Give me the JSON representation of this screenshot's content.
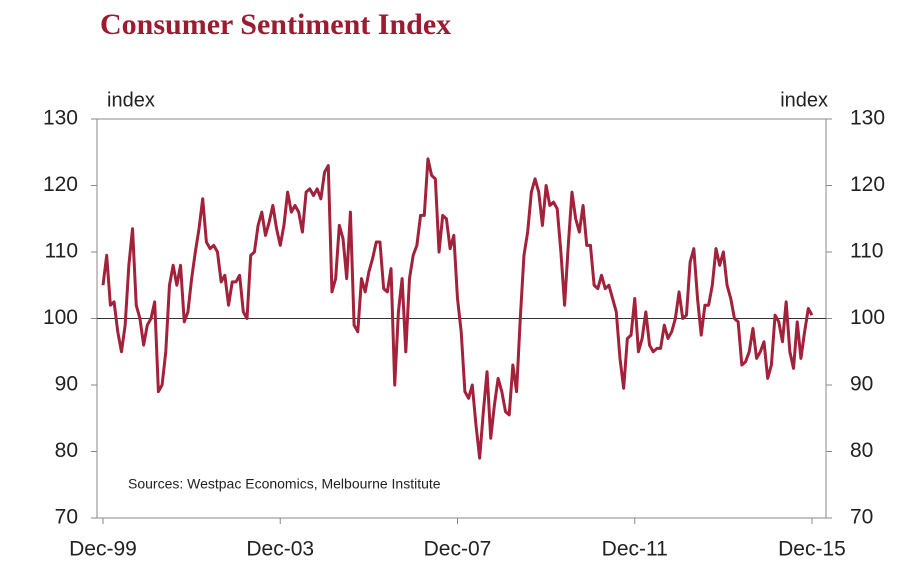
{
  "chart_data": {
    "type": "line",
    "title": "Consumer Sentiment Index",
    "y_label": "index",
    "y2_label": "index",
    "note": "Sources: Westpac Economics, Melbourne Institute",
    "categories": [
      "Dec-99",
      null,
      null,
      null,
      null,
      null,
      null,
      null,
      null,
      null,
      null,
      null,
      null,
      null,
      null,
      null,
      null,
      null,
      null,
      null,
      null,
      null,
      null,
      null,
      null,
      null,
      null,
      null,
      null,
      null,
      null,
      null,
      null,
      null,
      null,
      null,
      null,
      null,
      null,
      null,
      null,
      null,
      null,
      null,
      null,
      null,
      null,
      null,
      "Dec-03",
      null,
      null,
      null,
      null,
      null,
      null,
      null,
      null,
      null,
      null,
      null,
      null,
      null,
      null,
      null,
      null,
      null,
      null,
      null,
      null,
      null,
      null,
      null,
      null,
      null,
      null,
      null,
      null,
      null,
      null,
      null,
      null,
      null,
      null,
      null,
      null,
      null,
      null,
      null,
      null,
      null,
      null,
      null,
      null,
      null,
      null,
      null,
      "Dec-07",
      null,
      null,
      null,
      null,
      null,
      null,
      null,
      null,
      null,
      null,
      null,
      null,
      null,
      null,
      null,
      null,
      null,
      null,
      null,
      null,
      null,
      null,
      null,
      null,
      null,
      null,
      null,
      null,
      null,
      null,
      null,
      null,
      null,
      null,
      null,
      null,
      null,
      null,
      null,
      null,
      null,
      null,
      null,
      null,
      null,
      null,
      null,
      "Dec-11",
      null,
      null,
      null,
      null,
      null,
      null,
      null,
      null,
      null,
      null,
      null,
      null,
      null,
      null,
      null,
      null,
      null,
      null,
      null,
      null,
      null,
      null,
      null,
      null,
      null,
      null,
      null,
      null,
      null,
      null,
      null,
      null,
      null,
      null,
      null,
      null,
      null,
      null,
      null,
      null,
      null,
      null,
      null,
      null,
      null,
      null,
      null,
      "Dec-15"
    ],
    "series": [
      {
        "name": "Consumer Sentiment Index",
        "color": "#a3213a",
        "values": [
          105,
          109.5,
          102,
          102.5,
          98,
          95,
          99,
          108,
          113.5,
          102,
          100,
          96,
          99,
          100,
          102.5,
          89,
          90,
          95,
          105,
          108,
          105,
          108,
          99.5,
          101,
          106,
          110,
          113.5,
          118,
          111.5,
          110.5,
          111,
          110,
          105.5,
          106.5,
          102,
          105.5,
          105.5,
          106.5,
          101,
          100,
          109.5,
          110,
          114,
          116,
          112.5,
          114.5,
          117,
          113.5,
          111,
          114,
          119,
          116,
          117,
          116,
          113,
          119,
          119.5,
          118.5,
          119.5,
          118,
          122,
          123,
          104,
          106,
          114,
          112,
          106,
          116,
          99,
          98,
          106,
          104,
          107,
          109,
          111.5,
          111.5,
          104.5,
          104,
          107.5,
          90,
          101,
          106,
          95,
          106,
          109.5,
          111,
          115.5,
          115.5,
          124,
          121.5,
          121,
          110,
          115.5,
          115,
          110.5,
          112.5,
          103,
          98,
          89,
          88,
          90,
          84,
          79,
          86,
          92,
          82,
          87,
          91,
          89,
          86,
          85.5,
          93,
          89,
          100,
          109.5,
          113,
          119,
          121,
          119,
          114,
          120,
          117,
          117.5,
          116.5,
          110,
          102,
          111,
          119,
          115,
          113,
          117,
          111,
          111,
          105,
          104.5,
          106.5,
          104.5,
          105,
          103,
          101,
          94,
          89.5,
          97,
          97.5,
          103,
          95,
          97,
          101,
          96,
          95,
          95.5,
          95.5,
          99,
          97,
          98,
          100,
          104,
          100,
          100.5,
          108.5,
          110.5,
          103,
          97.5,
          102,
          102,
          105,
          110.5,
          108,
          110,
          105,
          103,
          100,
          99.5,
          93,
          93.5,
          95,
          98.5,
          94,
          95,
          96.5,
          91,
          93,
          100.5,
          99.5,
          96.5,
          102.5,
          95,
          92.5,
          99.5,
          94,
          98,
          101.5,
          100.5
        ]
      }
    ],
    "ylim": [
      70,
      130
    ],
    "yticks": [
      70,
      80,
      90,
      100,
      110,
      120,
      130
    ],
    "y2lim": [
      70,
      130
    ],
    "y2ticks": [
      70,
      80,
      90,
      100,
      110,
      120,
      130
    ],
    "reference_line": 100
  }
}
